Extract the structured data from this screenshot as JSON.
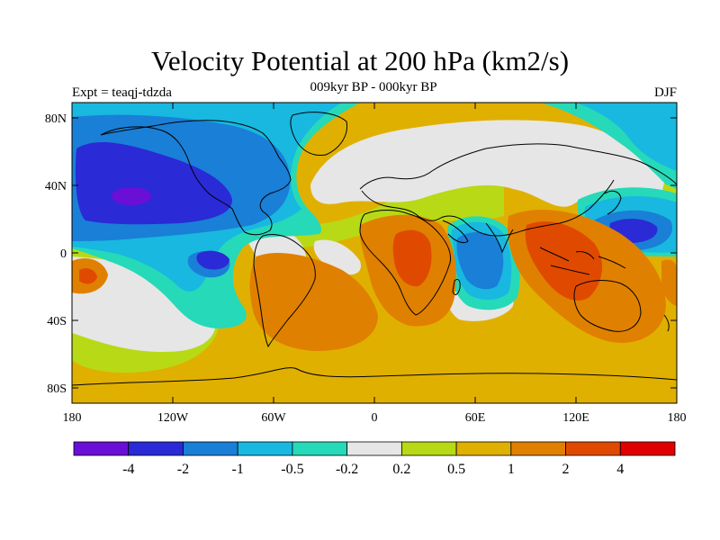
{
  "title": "Velocity Potential at 200 hPa (km2/s)",
  "subtitle": "009kyr BP - 000kyr BP",
  "left_label": "Expt = teaqj-tdzda",
  "right_label": "DJF",
  "map": {
    "lat_ticks": [
      "80N",
      "40N",
      "0",
      "40S",
      "80S"
    ],
    "lon_ticks": [
      "180",
      "120W",
      "60W",
      "0",
      "60E",
      "120E",
      "180"
    ]
  },
  "colorbar": {
    "levels": [
      "-4",
      "-2",
      "-1",
      "-0.5",
      "-0.2",
      "0.2",
      "0.5",
      "1",
      "2",
      "4"
    ],
    "colors": [
      "#6a0fd6",
      "#2a2ad6",
      "#1a7fd6",
      "#18b8e0",
      "#26d9b8",
      "#e6e6e6",
      "#b8d916",
      "#e0b000",
      "#e08000",
      "#e04a00",
      "#e00000"
    ]
  }
}
